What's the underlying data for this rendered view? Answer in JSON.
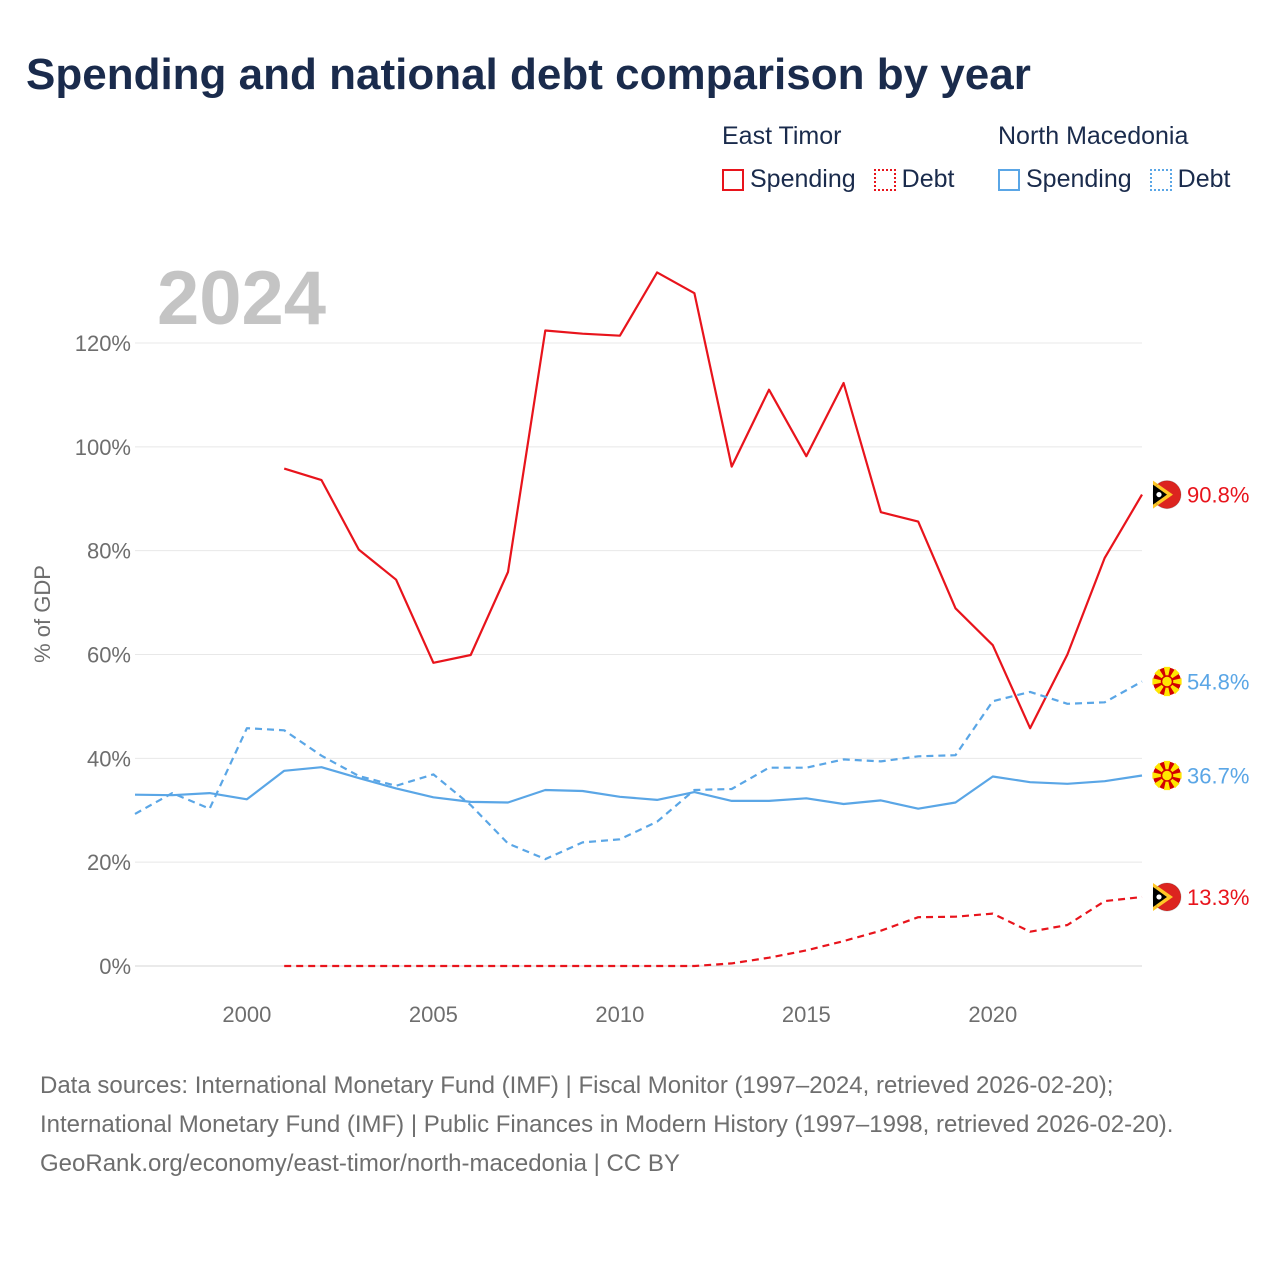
{
  "title": "Spending and national debt comparison by year",
  "legend": [
    {
      "country": "East Timor",
      "color": "#e8141c",
      "items": [
        {
          "label": "Spending",
          "style": "solid"
        },
        {
          "label": "Debt",
          "style": "dotted"
        }
      ]
    },
    {
      "country": "North Macedonia",
      "color": "#5aa6e6",
      "items": [
        {
          "label": "Spending",
          "style": "solid"
        },
        {
          "label": "Debt",
          "style": "dotted"
        }
      ]
    }
  ],
  "chart_data": {
    "type": "line",
    "year_label": "2024",
    "ylabel": "% of GDP",
    "ylim": [
      0,
      120
    ],
    "xlim": [
      1997,
      2024
    ],
    "yticks": [
      0,
      20,
      40,
      60,
      80,
      100,
      120
    ],
    "ytick_labels": [
      "0%",
      "20%",
      "40%",
      "60%",
      "80%",
      "100%",
      "120%"
    ],
    "xticks": [
      2000,
      2005,
      2010,
      2015,
      2020
    ],
    "xtick_labels": [
      "2000",
      "2005",
      "2010",
      "2015",
      "2020"
    ],
    "grid": true,
    "series": [
      {
        "name": "East Timor Spending",
        "country": "East Timor",
        "kind": "Spending",
        "color": "#e8141c",
        "dash": "solid",
        "flag": "east-timor-flag-icon",
        "end_label": "90.8%",
        "points": [
          [
            2001,
            95.8
          ],
          [
            2002,
            93.6
          ],
          [
            2003,
            80.2
          ],
          [
            2004,
            74.4
          ],
          [
            2005,
            58.4
          ],
          [
            2006,
            59.9
          ],
          [
            2007,
            75.9
          ],
          [
            2008,
            122.4
          ],
          [
            2009,
            121.8
          ],
          [
            2010,
            121.4
          ],
          [
            2011,
            133.6
          ],
          [
            2012,
            129.6
          ],
          [
            2013,
            96.2
          ],
          [
            2014,
            111.0
          ],
          [
            2015,
            98.2
          ],
          [
            2016,
            112.3
          ],
          [
            2017,
            87.4
          ],
          [
            2018,
            85.6
          ],
          [
            2019,
            68.9
          ],
          [
            2020,
            61.8
          ],
          [
            2021,
            45.8
          ],
          [
            2022,
            60.0
          ],
          [
            2023,
            78.6
          ],
          [
            2024,
            90.8
          ]
        ]
      },
      {
        "name": "East Timor Debt",
        "country": "East Timor",
        "kind": "Debt",
        "color": "#e8141c",
        "dash": "dashed",
        "flag": "east-timor-flag-icon",
        "end_label": "13.3%",
        "points": [
          [
            2001,
            0
          ],
          [
            2002,
            0
          ],
          [
            2003,
            0
          ],
          [
            2004,
            0
          ],
          [
            2005,
            0
          ],
          [
            2006,
            0
          ],
          [
            2007,
            0
          ],
          [
            2008,
            0
          ],
          [
            2009,
            0
          ],
          [
            2010,
            0
          ],
          [
            2011,
            0
          ],
          [
            2012,
            0
          ],
          [
            2013,
            0.5
          ],
          [
            2014,
            1.6
          ],
          [
            2015,
            3.0
          ],
          [
            2016,
            4.8
          ],
          [
            2017,
            6.8
          ],
          [
            2018,
            9.4
          ],
          [
            2019,
            9.5
          ],
          [
            2020,
            10.1
          ],
          [
            2021,
            6.6
          ],
          [
            2022,
            7.9
          ],
          [
            2023,
            12.5
          ],
          [
            2024,
            13.3
          ]
        ]
      },
      {
        "name": "North Macedonia Spending",
        "country": "North Macedonia",
        "kind": "Spending",
        "color": "#5aa6e6",
        "dash": "solid",
        "flag": "north-macedonia-flag-icon",
        "end_label": "36.7%",
        "points": [
          [
            1997,
            33.0
          ],
          [
            1998,
            32.9
          ],
          [
            1999,
            33.3
          ],
          [
            2000,
            32.1
          ],
          [
            2001,
            37.6
          ],
          [
            2002,
            38.3
          ],
          [
            2003,
            36.2
          ],
          [
            2004,
            34.2
          ],
          [
            2005,
            32.5
          ],
          [
            2006,
            31.6
          ],
          [
            2007,
            31.5
          ],
          [
            2008,
            33.9
          ],
          [
            2009,
            33.7
          ],
          [
            2010,
            32.6
          ],
          [
            2011,
            32.0
          ],
          [
            2012,
            33.5
          ],
          [
            2013,
            31.8
          ],
          [
            2014,
            31.8
          ],
          [
            2015,
            32.3
          ],
          [
            2016,
            31.2
          ],
          [
            2017,
            31.9
          ],
          [
            2018,
            30.3
          ],
          [
            2019,
            31.5
          ],
          [
            2020,
            36.5
          ],
          [
            2021,
            35.4
          ],
          [
            2022,
            35.1
          ],
          [
            2023,
            35.6
          ],
          [
            2024,
            36.7
          ]
        ]
      },
      {
        "name": "North Macedonia Debt",
        "country": "North Macedonia",
        "kind": "Debt",
        "color": "#5aa6e6",
        "dash": "dashed",
        "flag": "north-macedonia-flag-icon",
        "end_label": "54.8%",
        "points": [
          [
            1997,
            29.3
          ],
          [
            1998,
            33.3
          ],
          [
            1999,
            30.3
          ],
          [
            2000,
            45.8
          ],
          [
            2001,
            45.4
          ],
          [
            2002,
            40.5
          ],
          [
            2003,
            36.6
          ],
          [
            2004,
            34.7
          ],
          [
            2005,
            36.9
          ],
          [
            2006,
            31.0
          ],
          [
            2007,
            23.6
          ],
          [
            2008,
            20.6
          ],
          [
            2009,
            23.8
          ],
          [
            2010,
            24.4
          ],
          [
            2011,
            27.8
          ],
          [
            2012,
            33.9
          ],
          [
            2013,
            34.1
          ],
          [
            2014,
            38.2
          ],
          [
            2015,
            38.2
          ],
          [
            2016,
            39.8
          ],
          [
            2017,
            39.4
          ],
          [
            2018,
            40.4
          ],
          [
            2019,
            40.6
          ],
          [
            2020,
            51.0
          ],
          [
            2021,
            52.8
          ],
          [
            2022,
            50.5
          ],
          [
            2023,
            50.8
          ],
          [
            2024,
            54.8
          ]
        ]
      }
    ]
  },
  "footer": {
    "sources": "Data sources: International Monetary Fund (IMF) | Fiscal Monitor (1997–2024, retrieved 2026-02-20); International Monetary Fund (IMF) | Public Finances in Modern History (1997–1998, retrieved 2026-02-20).",
    "credit": "GeoRank.org/economy/east-timor/north-macedonia | CC BY"
  }
}
